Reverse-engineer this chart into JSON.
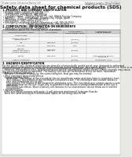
{
  "bg_color": "#e8e8e4",
  "page_bg": "#ffffff",
  "title": "Safety data sheet for chemical products (SDS)",
  "header_left": "Product name: Lithium Ion Battery Cell",
  "header_right_line1": "Substance number: 989-049-00818",
  "header_right_line2": "Established / Revision: Dec.1.2019",
  "section1_title": "1. PRODUCT AND COMPANY IDENTIFICATION",
  "section1_lines": [
    " • Product name: Lithium Ion Battery Cell",
    " • Product code: Cylindrical-type cell",
    "    (IHR18650U, IHR18650L, IHR18650A)",
    " • Company name:    Bansyo Electric Co., Ltd., Mobile Energy Company",
    " • Address:    2021, Kaminakaon, Sumoto-City, Hyogo, Japan",
    " • Telephone number:  +81-799-26-4111",
    " • Fax number:  +81-799-26-4123",
    " • Emergency telephone number (Weekdays) +81-799-26-3562",
    "                                    (Night and holiday) +81-799-26-4101"
  ],
  "section2_title": "2. COMPOSITION / INFORMATION ON INGREDIENTS",
  "section2_sub1": " • Substance or preparation: Preparation",
  "section2_sub2": " • Information about the chemical nature of products",
  "table_headers": [
    "Component/chemical name",
    "CAS number",
    "Concentration /\nConcentration range",
    "Classification and\nhazard labeling"
  ],
  "table_rows": [
    [
      "Several name",
      "-",
      "-",
      "-"
    ],
    [
      "Lithium cobalt oxide\n(LiMn/Co/Ni)O₂",
      "-",
      "[30-60%]",
      "-"
    ],
    [
      "Iron",
      "7439-89-6",
      "[5-20%]",
      "-"
    ],
    [
      "Aluminum",
      "7429-90-5",
      "2.6%",
      "-"
    ],
    [
      "Graphite\n(Natural graphite+)\n(Artificial graphite+)",
      "7782-42-5\n7782-44-7",
      "[0-25%]",
      "-"
    ],
    [
      "Copper",
      "7440-50-8",
      "[3-15%]",
      "Sensitization of the skin\ngroup No.2"
    ],
    [
      "Organic electrolyte",
      "-",
      "[0-20%]",
      "Inflammable liquid"
    ]
  ],
  "section3_title": "3. HAZARDS IDENTIFICATION",
  "section3_lines": [
    "For the battery cell, chemical materials are stored in a hermetically sealed metal case, designed to withstand",
    "temperatures generated by electro-chemical reactions during normal use. As a result, during normal use, there is no",
    "physical danger of ignition or explosion and thermal-danger of hazardous materials leakage.",
    "   However, if exposed to a fire, added mechanical shocks, decomposed, where electric current strongly may cause,",
    "the gas release cannot be operated. The battery cell case will be breakout of the extreme, hazardous",
    "materials may be released.",
    "   Moreover, if heated strongly by the surrounding fire, local gas may be emitted.",
    "",
    " • Most important hazard and effects",
    "   Human health effects:",
    "      Inhalation: The release of the electrolyte has an anesthesia action and stimulates in respiratory tract.",
    "      Skin contact: The release of the electrolyte stimulates a skin. The electrolyte skin contact causes a",
    "      sore and stimulation on the skin.",
    "      Eye contact: The release of the electrolyte stimulates eyes. The electrolyte eye contact causes a sore",
    "      and stimulation on the eye. Especially, a substance that causes a strong inflammation of the eye is",
    "      contained.",
    "      Environmental effects: Since a battery cell remains in the environment, do not throw out it into the",
    "      environment.",
    "",
    " • Specific hazards:",
    "   If the electrolyte contacts with water, it will generate detrimental hydrogen fluoride.",
    "   Since the used electrolyte is inflammable liquid, do not bring close to fire."
  ]
}
